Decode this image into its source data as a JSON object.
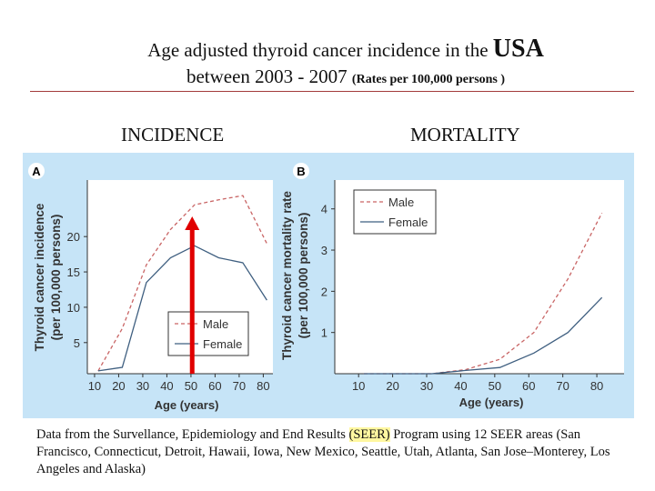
{
  "slide": {
    "title_line1": "Age adjusted thyroid cancer incidence in the",
    "title_line1_emphasis": "USA",
    "title_line2": "between 2003 - 2007",
    "title_line2_note": "(Rates per 100,000 persons )",
    "left_heading": "INCIDENCE",
    "right_heading": "MORTALITY",
    "footer_part1": "Data from the Survellance, Epidemiology and End Results",
    "footer_highlight": "(SEER)",
    "footer_part2": "Program using 12 SEER areas (San Francisco, Connecticut, Detroit, Hawaii, Iowa, New Mexico, Seattle, Utah, Atlanta, San Jose–Monterey, Los Angeles and Alaska)",
    "accent_color": "#e00000",
    "panel_color": "#c6e4f7"
  },
  "chart_data": [
    {
      "type": "line",
      "panel_label": "A",
      "xlabel": "Age (years)",
      "ylabel_line1": "Thyroid cancer incidence",
      "ylabel_line2": "(per 100,000 persons)",
      "x": [
        10,
        20,
        30,
        40,
        50,
        60,
        70,
        80
      ],
      "xticks": [
        10,
        20,
        30,
        40,
        50,
        60,
        70,
        80
      ],
      "yticks": [
        5,
        10,
        15,
        20
      ],
      "xlim": [
        7,
        84
      ],
      "ylim": [
        0.6,
        28
      ],
      "legend_position": "bottom-right",
      "annotation": {
        "type": "arrow",
        "x": 50,
        "color": "#e00000",
        "direction": "up"
      },
      "series": [
        {
          "name": "Male",
          "style": "dashed",
          "color": "#c96565",
          "values": [
            1,
            7,
            16,
            21,
            24.5,
            25.2,
            25.8,
            19
          ]
        },
        {
          "name": "Female",
          "style": "solid",
          "color": "#3f5f80",
          "values": [
            1,
            1.5,
            13.5,
            17,
            18.7,
            17,
            16.3,
            11
          ]
        }
      ]
    },
    {
      "type": "line",
      "panel_label": "B",
      "xlabel": "Age (years)",
      "ylabel_line1": "Thyroid cancer mortality rate",
      "ylabel_line2": "(per 100,000 persons)",
      "x": [
        10,
        20,
        30,
        40,
        50,
        60,
        70,
        80
      ],
      "xticks": [
        10,
        20,
        30,
        40,
        50,
        60,
        70,
        80
      ],
      "yticks": [
        1,
        2,
        3,
        4
      ],
      "xlim": [
        3,
        88
      ],
      "ylim": [
        0,
        4.7
      ],
      "legend_position": "top-left",
      "series": [
        {
          "name": "Male",
          "style": "dashed",
          "color": "#c96565",
          "values": [
            0,
            0,
            0,
            0.1,
            0.35,
            1.0,
            2.3,
            3.9
          ]
        },
        {
          "name": "Female",
          "style": "solid",
          "color": "#3f5f80",
          "values": [
            0,
            0,
            0,
            0.08,
            0.15,
            0.5,
            1.0,
            1.85
          ]
        }
      ]
    }
  ]
}
